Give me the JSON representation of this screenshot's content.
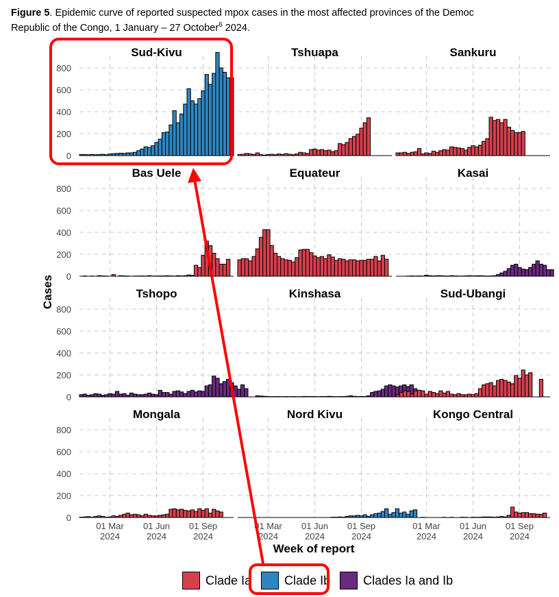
{
  "caption": {
    "label": "Figure 5",
    "text": ". Epidemic curve of reported suspected mpox cases in the most affected provinces of the Democ",
    "line2_text": "Republic of the Congo, 1 January – 27 October",
    "line2_sup": "6",
    "line2_tail": " 2024."
  },
  "colors": {
    "clade_ia": "#d6404e",
    "clade_ib": "#2e86c1",
    "clades_ia_ib": "#6a2a80",
    "highlight": "#ff0000"
  },
  "legend": [
    {
      "label": "Clade Ia",
      "color_key": "clade_ia"
    },
    {
      "label": "Clade Ib",
      "color_key": "clade_ib"
    },
    {
      "label": "Clades Ia and Ib",
      "color_key": "clades_ia_ib"
    }
  ],
  "chart_data": {
    "type": "bar",
    "title": "",
    "xlabel": "Week of report",
    "ylabel": "Cases",
    "ylim": [
      0,
      950
    ],
    "yticks": [
      0,
      200,
      400,
      600,
      800
    ],
    "xtick_labels": [
      {
        "line1": "01 Mar",
        "line2": "2024",
        "week": 8.5
      },
      {
        "line1": "01 Jun",
        "line2": "2024",
        "week": 21.5
      },
      {
        "line1": "01 Sep",
        "line2": "2024",
        "week": 34.5
      }
    ],
    "weeks": 43,
    "grid": true,
    "panels": [
      {
        "name": "Sud-Kivu",
        "clade": "clade_ib",
        "highlighted": true,
        "values": [
          10,
          10,
          8,
          10,
          8,
          10,
          12,
          8,
          15,
          18,
          20,
          22,
          20,
          25,
          25,
          30,
          45,
          60,
          80,
          75,
          90,
          120,
          150,
          210,
          215,
          280,
          410,
          300,
          380,
          470,
          610,
          500,
          470,
          520,
          590,
          740,
          650,
          750,
          940,
          800,
          760,
          710,
          710
        ]
      },
      {
        "name": "Tshuapa",
        "clade": "clade_ia",
        "values": [
          10,
          12,
          20,
          15,
          10,
          25,
          8,
          5,
          10,
          12,
          8,
          15,
          10,
          18,
          12,
          8,
          15,
          30,
          25,
          20,
          55,
          60,
          50,
          55,
          45,
          50,
          35,
          45,
          110,
          100,
          120,
          155,
          175,
          195,
          250,
          300,
          345
        ]
      },
      {
        "name": "Sankuru",
        "clade": "clade_ia",
        "values": [
          25,
          25,
          30,
          20,
          30,
          35,
          65,
          15,
          25,
          20,
          40,
          30,
          45,
          55,
          50,
          80,
          75,
          70,
          65,
          50,
          75,
          90,
          80,
          95,
          130,
          155,
          350,
          320,
          330,
          300,
          330,
          260,
          230,
          210,
          210,
          220
        ]
      },
      {
        "name": "Bas Uele",
        "clade": "clade_ia",
        "values": [
          0,
          3,
          0,
          2,
          0,
          5,
          3,
          2,
          0,
          15,
          0,
          5,
          3,
          2,
          0,
          2,
          2,
          3,
          2,
          5,
          2,
          2,
          3,
          3,
          5,
          3,
          2,
          5,
          3,
          5,
          12,
          8,
          100,
          80,
          190,
          320,
          280,
          210,
          160,
          110,
          110,
          155
        ]
      },
      {
        "name": "Equateur",
        "clade": "clade_ia",
        "values": [
          150,
          160,
          160,
          140,
          180,
          250,
          355,
          425,
          425,
          280,
          210,
          180,
          160,
          150,
          145,
          130,
          170,
          240,
          245,
          245,
          215,
          185,
          170,
          180,
          160,
          195,
          175,
          145,
          160,
          155,
          140,
          150,
          150,
          140,
          145,
          145,
          155,
          155,
          180,
          140,
          190,
          155
        ]
      },
      {
        "name": "Kasai",
        "clade": "clades_ia_ib",
        "values": [
          0,
          0,
          0,
          2,
          3,
          2,
          3,
          2,
          10,
          5,
          3,
          5,
          5,
          3,
          2,
          5,
          3,
          2,
          2,
          3,
          5,
          3,
          4,
          5,
          3,
          2,
          3,
          5,
          15,
          30,
          45,
          70,
          100,
          110,
          80,
          65,
          60,
          80,
          110,
          140,
          110,
          100,
          60,
          60
        ]
      },
      {
        "name": "Tshopo",
        "clade": "clades_ia_ib",
        "values": [
          20,
          25,
          15,
          20,
          30,
          25,
          15,
          20,
          30,
          25,
          50,
          25,
          30,
          15,
          35,
          25,
          20,
          20,
          25,
          35,
          25,
          20,
          60,
          40,
          40,
          25,
          50,
          55,
          45,
          30,
          50,
          60,
          45,
          55,
          50,
          100,
          110,
          190,
          170,
          120,
          140,
          160,
          130,
          100,
          70,
          110,
          75
        ]
      },
      {
        "name": "Kinshasa",
        "clade": "clades_ia_ib",
        "values": [
          0,
          0,
          0,
          0,
          0,
          10,
          8,
          5,
          3,
          2,
          3,
          3,
          2,
          3,
          2,
          3,
          2,
          2,
          4,
          3,
          3,
          3,
          2,
          3,
          3,
          5,
          3,
          2,
          3,
          3,
          5,
          10,
          5,
          3,
          4,
          3,
          10,
          40,
          50,
          55,
          70,
          100,
          110,
          100,
          90,
          100,
          110,
          95,
          110,
          75,
          60
        ]
      },
      {
        "name": "Sud-Ubangi",
        "clade": "clade_ia",
        "values": [
          20,
          40,
          55,
          50,
          25,
          55,
          60,
          55,
          25,
          50,
          40,
          30,
          55,
          35,
          50,
          25,
          20,
          30,
          20,
          20,
          25,
          20,
          30,
          75,
          110,
          120,
          130,
          100,
          150,
          160,
          150,
          135,
          120,
          195,
          170,
          245,
          200,
          220,
          0,
          0,
          160
        ]
      },
      {
        "name": "Mongala",
        "clade": "clade_ia",
        "values": [
          3,
          5,
          8,
          3,
          10,
          15,
          10,
          3,
          5,
          15,
          10,
          20,
          30,
          40,
          25,
          30,
          25,
          15,
          30,
          20,
          15,
          15,
          20,
          25,
          30,
          75,
          80,
          70,
          75,
          65,
          60,
          70,
          55,
          80,
          65,
          80,
          40,
          75,
          60,
          50
        ]
      },
      {
        "name": "Nord Kivu",
        "clade": "clade_ib",
        "values": [
          0,
          0,
          0,
          0,
          0,
          0,
          0,
          0,
          0,
          0,
          0,
          0,
          0,
          0,
          0,
          0,
          0,
          0,
          0,
          0,
          0,
          0,
          0,
          0,
          0,
          0,
          3,
          3,
          5,
          3,
          10,
          15,
          15,
          20,
          15,
          25,
          10,
          25,
          35,
          40,
          55,
          80,
          30,
          45,
          80,
          40,
          50,
          30,
          60,
          70
        ]
      },
      {
        "name": "Kongo Central",
        "clade": "clade_ia",
        "values": [
          0,
          0,
          0,
          0,
          2,
          0,
          0,
          2,
          0,
          0,
          0,
          0,
          0,
          2,
          0,
          2,
          0,
          0,
          3,
          2,
          0,
          3,
          2,
          3,
          5,
          5,
          5,
          3,
          5,
          10,
          5,
          20,
          95,
          50,
          40,
          45,
          45,
          35,
          35,
          30,
          30,
          40
        ]
      }
    ]
  }
}
